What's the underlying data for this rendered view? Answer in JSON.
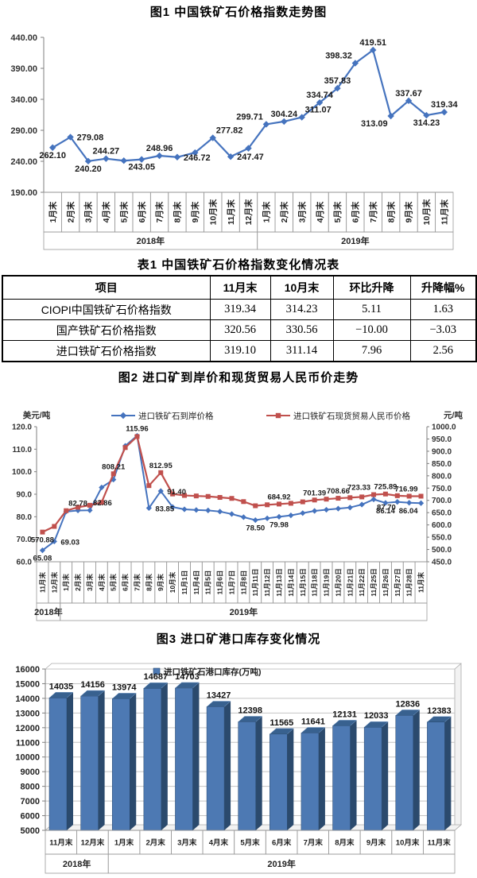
{
  "table": {
    "title": "表1 中国铁矿石价格指数变化情况表",
    "headers": [
      "项目",
      "11月末",
      "10月末",
      "环比升降",
      "升降幅%"
    ],
    "rows": [
      [
        "CIOPI中国铁矿石价格指数",
        "319.34",
        "314.23",
        "5.11",
        "1.63"
      ],
      [
        "国产铁矿石价格指数",
        "320.56",
        "330.56",
        "−10.00",
        "−3.03"
      ],
      [
        "进口铁矿石价格指数",
        "319.10",
        "311.14",
        "7.96",
        "2.56"
      ]
    ]
  },
  "chart_data": [
    {
      "id": "fig1",
      "type": "line",
      "title": "图1 中国铁矿石价格指数走势图",
      "ylim": [
        190,
        440
      ],
      "y_tick_labels": [
        "440.00",
        "390.00",
        "340.00",
        "290.00",
        "240.00",
        "190.00"
      ],
      "grid": false,
      "legend_position": "none",
      "categories": [
        "1月末",
        "2月末",
        "3月末",
        "4月末",
        "5月末",
        "6月末",
        "7月末",
        "8月末",
        "9月末",
        "10月末",
        "11月末",
        "12月末",
        "1月末",
        "2月末",
        "3月末",
        "4月末",
        "5月末",
        "6月末",
        "7月末",
        "8月末",
        "9月末",
        "10月末",
        "11月末"
      ],
      "year_bands": [
        {
          "label": "2018年",
          "count": 12
        },
        {
          "label": "2019年",
          "count": 11
        }
      ],
      "series": [
        {
          "name": "中国铁矿石价格指数",
          "color": "#4573be",
          "marker": "diamond",
          "values": [
            262.1,
            279.08,
            240.2,
            244.27,
            241.0,
            243.05,
            248.96,
            246.72,
            254.0,
            277.82,
            247.47,
            261.0,
            299.71,
            304.24,
            311.07,
            334.74,
            357.83,
            398.32,
            419.51,
            313.09,
            337.67,
            314.23,
            319.34
          ],
          "labels": [
            "262.10",
            "279.08",
            "240.20",
            "244.27",
            "",
            "243.05",
            "248.96",
            "246.72",
            "",
            "277.82",
            "247.47",
            "",
            "299.71",
            "304.24",
            "311.07",
            "334.74",
            "357.83",
            "398.32",
            "419.51",
            "313.09",
            "337.67",
            "314.23",
            "319.34"
          ],
          "label_pos": [
            "below",
            "right",
            "below",
            "above",
            "",
            "below",
            "above",
            "right",
            "",
            "above-right",
            "right",
            "",
            "above-left",
            "above",
            "above-right",
            "above",
            "above",
            "above-left",
            "above",
            "below-left",
            "above",
            "below",
            "above"
          ]
        }
      ]
    },
    {
      "id": "fig2",
      "type": "dual_line",
      "title": "图2 进口矿到岸价和现货贸易人民币价走势",
      "left_axis_title": "美元/吨",
      "right_axis_title": "元/吨",
      "left_ylim": [
        60,
        120
      ],
      "left_tick_labels": [
        "120.0",
        "110.0",
        "100.0",
        "90.0",
        "80.0",
        "70.0",
        "60.0"
      ],
      "right_ylim": [
        450,
        1000
      ],
      "right_tick_labels": [
        "1000.0",
        "950.0",
        "900.0",
        "850.0",
        "800.0",
        "750.0",
        "700.0",
        "650.0",
        "600.0",
        "550.0",
        "500.0",
        "450.0"
      ],
      "grid": false,
      "legend_position": "top",
      "categories": [
        "11月末",
        "12月末",
        "1月末",
        "2月末",
        "3月末",
        "4月末",
        "5月末",
        "6月末",
        "7月末",
        "8月末",
        "9月末",
        "10月末",
        "11月1日",
        "11月4日",
        "11月5日",
        "11月6日",
        "11月7日",
        "11月8日",
        "11月11日",
        "11月12日",
        "11月13日",
        "11月14日",
        "11月15日",
        "11月18日",
        "11月19日",
        "11月20日",
        "11月21日",
        "11月22日",
        "11月25日",
        "11月26日",
        "11月27日",
        "11月28日",
        "11月末"
      ],
      "year_bands": [
        {
          "label": "2018年",
          "count": 2
        },
        {
          "label": "2019年",
          "count": 31
        }
      ],
      "series": [
        {
          "name": "进口铁矿石到岸价格",
          "axis": "left",
          "color": "#4573be",
          "marker": "diamond",
          "values": [
            65.08,
            69.03,
            82.3,
            82.78,
            82.86,
            93.0,
            96.5,
            111.5,
            115.96,
            83.85,
            91.4,
            84.3,
            83.3,
            83.0,
            82.8,
            82.3,
            81.2,
            79.8,
            78.5,
            79.3,
            79.98,
            80.6,
            81.6,
            82.6,
            83.1,
            83.6,
            84.1,
            85.4,
            87.7,
            86.14,
            86.6,
            86.2,
            86.04
          ],
          "labels": [
            "65.08",
            "69.03",
            "",
            "82.78",
            "82.86",
            "",
            "",
            "",
            "115.96",
            "83.85",
            "91.40",
            "",
            "",
            "",
            "",
            "",
            "",
            "",
            "78.50",
            "",
            "79.98",
            "",
            "",
            "",
            "",
            "",
            "",
            "",
            "87.70",
            "86.14",
            "",
            "",
            "86.04"
          ],
          "label_pos": [
            "below",
            "right",
            "",
            "above",
            "above-right",
            "",
            "",
            "",
            "above",
            "right",
            "right",
            "",
            "",
            "",
            "",
            "",
            "",
            "",
            "below",
            "",
            "below",
            "",
            "",
            "",
            "",
            "",
            "",
            "",
            "below-right",
            "below",
            "",
            "",
            "below-left"
          ]
        },
        {
          "name": "进口铁矿石现货贸易人民币价格",
          "axis": "right",
          "color": "#c0504d",
          "marker": "square",
          "values": [
            570.88,
            594,
            658,
            672,
            680,
            692,
            808.21,
            915,
            960,
            760,
            812.95,
            726,
            720,
            718,
            716,
            712,
            708,
            695,
            678,
            682,
            684.92,
            688,
            694,
            701.39,
            705,
            708.66,
            711,
            714,
            723.33,
            725.89,
            719,
            717,
            716.99
          ],
          "labels": [
            "570.88",
            "",
            "",
            "",
            "",
            "",
            "808.21",
            "",
            "",
            "",
            "812.95",
            "",
            "",
            "",
            "",
            "",
            "",
            "",
            "",
            "",
            "684.92",
            "",
            "",
            "701.39",
            "",
            "708.66",
            "",
            "",
            "723.33",
            "725.89",
            "",
            "",
            "716.99"
          ],
          "label_pos": [
            "below",
            "",
            "",
            "",
            "",
            "",
            "above",
            "",
            "",
            "",
            "above",
            "",
            "",
            "",
            "",
            "",
            "",
            "",
            "",
            "",
            "above",
            "",
            "",
            "above",
            "",
            "above",
            "",
            "",
            "above-left",
            "above",
            "",
            "",
            "above-left"
          ]
        }
      ]
    },
    {
      "id": "fig3",
      "type": "bar3d",
      "title": "图3 进口矿港口库存变化情况",
      "legend": "进口铁矿石港口库存(万吨)",
      "ylim": [
        5000,
        16000
      ],
      "y_step": 1000,
      "y_tick_labels": [
        "16000",
        "15000",
        "14000",
        "13000",
        "12000",
        "11000",
        "10000",
        "9000",
        "8000",
        "7000",
        "6000",
        "5000"
      ],
      "grid": true,
      "legend_position": "top-inside",
      "categories": [
        "11月末",
        "12月末",
        "1月末",
        "2月末",
        "3月末",
        "4月末",
        "5月末",
        "6月末",
        "7月末",
        "8月末",
        "9月末",
        "10月末",
        "11月末"
      ],
      "year_bands": [
        {
          "label": "2018年",
          "count": 2
        },
        {
          "label": "2019年",
          "count": 11
        }
      ],
      "values": [
        14035,
        14156,
        13974,
        14687,
        14703,
        13427,
        12398,
        11565,
        11641,
        12131,
        12033,
        12836,
        12383
      ],
      "bar_color": "#4d79b3",
      "bar_side_color": "#2b4a6d",
      "bar_top_color": "#38618f"
    }
  ]
}
